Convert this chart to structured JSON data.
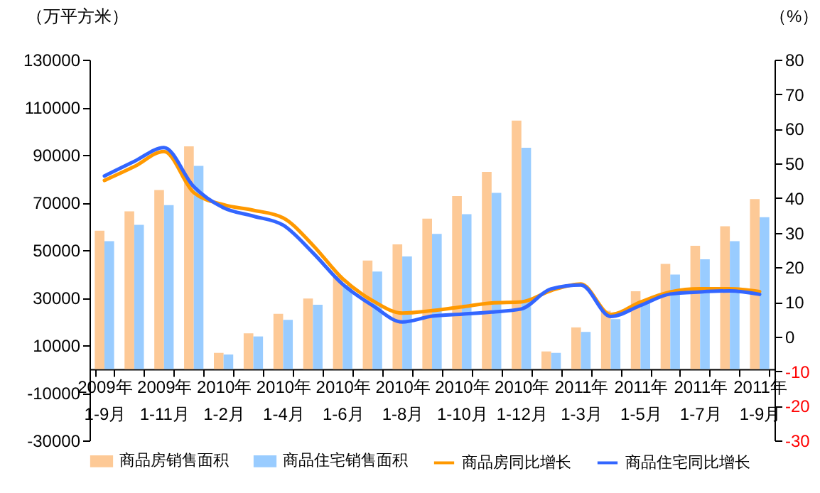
{
  "chart_data": {
    "type": "bar",
    "ylabel": "（万平方米）",
    "y2label": "（%）",
    "categories": [
      "2009年1-9月",
      null,
      "2009年1-11月",
      null,
      "2010年1-2月",
      null,
      "2010年1-4月",
      null,
      "2010年1-6月",
      null,
      "2010年1-8月",
      null,
      "2010年1-10月",
      null,
      "2010年1-12月",
      null,
      "2011年1-3月",
      null,
      "2011年1-5月",
      null,
      "2011年1-7月",
      null,
      "2011年1-9月"
    ],
    "series": [
      {
        "name": "商品房销售面积",
        "color": "#fdc996",
        "values": [
          58100,
          66300,
          75200,
          93600,
          6800,
          15000,
          23200,
          29600,
          39100,
          45600,
          52400,
          63200,
          72700,
          82800,
          104400,
          7400,
          17500,
          24500,
          32700,
          44200,
          51800,
          60000,
          71400
        ]
      },
      {
        "name": "商品住宅销售面积",
        "color": "#99ccff",
        "values": [
          53700,
          60600,
          68900,
          85400,
          6100,
          13700,
          20700,
          27000,
          35300,
          41000,
          47300,
          56800,
          65100,
          74000,
          93000,
          6800,
          15600,
          21000,
          28900,
          39700,
          46100,
          53700,
          63800
        ]
      },
      {
        "name": "商品房同比增长",
        "type": "line",
        "axis": "y2",
        "color": "#ff9900",
        "values": [
          45.1,
          49.1,
          53.5,
          41.6,
          38.1,
          36.5,
          34.3,
          26.4,
          16.7,
          10.4,
          6.8,
          7.5,
          8.6,
          9.7,
          10.0,
          13.3,
          15.2,
          6.4,
          10.0,
          12.9,
          13.8,
          13.8,
          13.0
        ]
      },
      {
        "name": "商品住宅同比增长",
        "type": "line",
        "axis": "y2",
        "color": "#3366ff",
        "values": [
          46.4,
          50.6,
          54.6,
          43.3,
          37.2,
          34.8,
          32.2,
          24.2,
          15.1,
          9.0,
          4.2,
          5.9,
          6.5,
          7.1,
          8.0,
          13.8,
          14.9,
          5.8,
          9.0,
          12.3,
          12.9,
          13.2,
          12.2
        ]
      }
    ],
    "ylim": [
      -30000,
      130000
    ],
    "yticks": [
      -30000,
      -10000,
      10000,
      30000,
      50000,
      70000,
      90000,
      110000,
      130000
    ],
    "y2lim": [
      -30,
      80
    ],
    "y2ticks": [
      -30,
      -20,
      -10,
      0,
      10,
      20,
      30,
      40,
      50,
      60,
      70,
      80
    ],
    "legend": "bottom"
  }
}
